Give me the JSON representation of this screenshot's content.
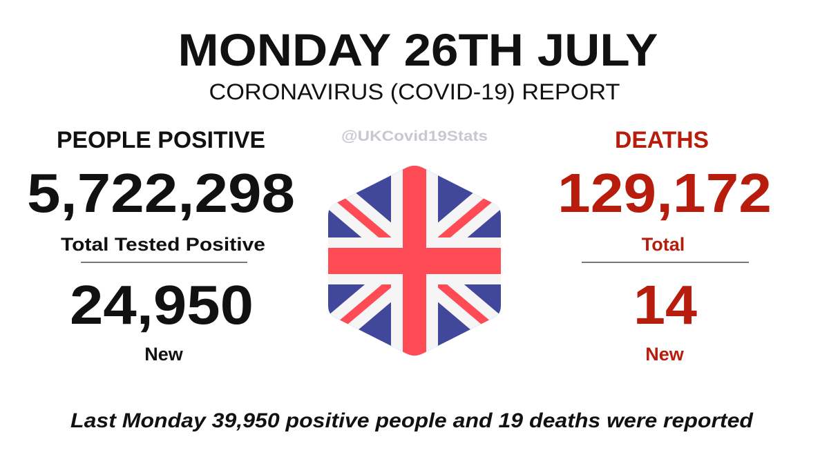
{
  "header": {
    "title": "MONDAY 26TH JULY",
    "subtitle": "CORONAVIRUS (COVID-19) REPORT",
    "handle": "@UKCovid19Stats"
  },
  "positive": {
    "heading": "PEOPLE POSITIVE",
    "total": "5,722,298",
    "total_label": "Total Tested Positive",
    "new": "24,950",
    "new_label": "New"
  },
  "deaths": {
    "heading": "DEATHS",
    "total": "129,172",
    "total_label": "Total",
    "new": "14",
    "new_label": "New"
  },
  "footer": "Last Monday 39,950 positive people and 19 deaths were reported"
}
